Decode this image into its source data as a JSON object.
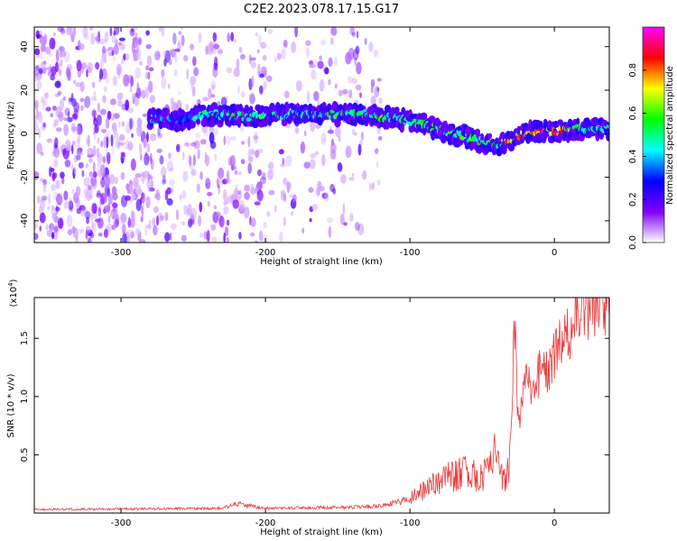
{
  "figure": {
    "title": "C2E2.2023.078.17.15.G17"
  },
  "chart_data": [
    {
      "type": "heatmap",
      "xlabel": "Height of straight line (km)",
      "ylabel": "Frequency (Hz)",
      "xlim": [
        -360,
        38
      ],
      "ylim": [
        -50,
        49
      ],
      "x_ticks": [
        -300,
        -200,
        -100,
        0
      ],
      "y_ticks": [
        -40,
        -20,
        0,
        20,
        40
      ],
      "colorbar": {
        "label": "Normalized spectral amplitude",
        "range": [
          0.0,
          1.0
        ],
        "ticks": [
          "0.0",
          "0.2",
          "0.4",
          "0.6",
          "0.8"
        ],
        "colormap": [
          "#ffffff",
          "#8000ff",
          "#0000ff",
          "#00ffff",
          "#00ff00",
          "#ffff00",
          "#ff0000",
          "#ff00ff"
        ]
      },
      "signal_track": [
        {
          "x": -280,
          "y": 7,
          "amp": 0.5
        },
        {
          "x": -260,
          "y": 6,
          "amp": 0.35
        },
        {
          "x": -240,
          "y": 9,
          "amp": 0.55
        },
        {
          "x": -220,
          "y": 8,
          "amp": 0.55
        },
        {
          "x": -200,
          "y": 8,
          "amp": 0.6
        },
        {
          "x": -180,
          "y": 9,
          "amp": 0.5
        },
        {
          "x": -160,
          "y": 9,
          "amp": 0.55
        },
        {
          "x": -140,
          "y": 9,
          "amp": 0.55
        },
        {
          "x": -120,
          "y": 8,
          "amp": 0.6
        },
        {
          "x": -100,
          "y": 6,
          "amp": 0.55
        },
        {
          "x": -80,
          "y": 2,
          "amp": 0.6
        },
        {
          "x": -60,
          "y": -2,
          "amp": 0.6
        },
        {
          "x": -40,
          "y": -5,
          "amp": 0.6
        },
        {
          "x": -30,
          "y": -3,
          "amp": 0.9
        },
        {
          "x": -20,
          "y": 0,
          "amp": 0.85
        },
        {
          "x": -10,
          "y": 1,
          "amp": 0.95
        },
        {
          "x": 0,
          "y": 1,
          "amp": 0.95
        },
        {
          "x": 20,
          "y": 2,
          "amp": 0.55
        },
        {
          "x": 38,
          "y": 2,
          "amp": 0.5
        }
      ]
    },
    {
      "type": "line",
      "xlabel": "Height of straight line (km)",
      "ylabel": "SNR (10 * v/v)",
      "ymultiplier": "(x10",
      "ymultiplier_exp": "4",
      "ymultiplier_close": ")",
      "xlim": [
        -360,
        38
      ],
      "ylim": [
        0,
        18500
      ],
      "x_ticks": [
        -300,
        -200,
        -100,
        0
      ],
      "y_ticks": [
        0.5,
        1.0,
        1.5
      ],
      "y_tick_labels": [
        "0.5",
        "1.0",
        "1.5"
      ],
      "color": "#e83a3a",
      "series": [
        {
          "x": [
            -360,
            -300,
            -230,
            -220,
            -200,
            -140,
            -120,
            -100,
            -90,
            -75,
            -60,
            -50,
            -40,
            -35,
            -30,
            -28,
            -25,
            -20,
            -15,
            -10,
            -5,
            0,
            5,
            10,
            15,
            20,
            25,
            30,
            38
          ],
          "y": [
            300,
            350,
            400,
            800,
            400,
            500,
            600,
            1200,
            2000,
            3000,
            3500,
            3000,
            5000,
            2500,
            5000,
            16500,
            8000,
            11000,
            11000,
            12000,
            12500,
            13500,
            14500,
            15500,
            17000,
            17500,
            18000,
            18200,
            18300
          ]
        }
      ]
    }
  ]
}
